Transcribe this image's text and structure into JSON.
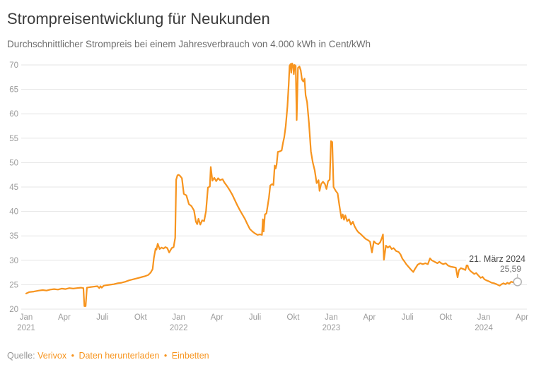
{
  "header": {
    "title": "Strompreisentwicklung für Neukunden",
    "subtitle": "Durchschnittlicher Strompreis bei einem Jahresverbrauch von 4.000 kWh in Cent/kWh"
  },
  "chart_data": {
    "type": "line",
    "title": "Strompreisentwicklung für Neukunden",
    "subtitle": "Durchschnittlicher Strompreis bei einem Jahresverbrauch von 4.000 kWh in Cent/kWh",
    "ylabel": "Cent/kWh",
    "xlabel": "",
    "ylim": [
      20,
      70
    ],
    "grid": true,
    "legend": "none",
    "x_unit": "months since Jan 2021 (0 = Jan 2021, 39 = Apr 2024)",
    "y_ticks": [
      20,
      25,
      30,
      35,
      40,
      45,
      50,
      55,
      60,
      65,
      70
    ],
    "x_ticks": [
      {
        "label": "Jan",
        "year": "2021",
        "month": 0
      },
      {
        "label": "Apr",
        "month": 3
      },
      {
        "label": "Juli",
        "month": 6
      },
      {
        "label": "Okt",
        "month": 9
      },
      {
        "label": "Jan",
        "year": "2022",
        "month": 12
      },
      {
        "label": "Apr",
        "month": 15
      },
      {
        "label": "Juli",
        "month": 18
      },
      {
        "label": "Okt",
        "month": 21
      },
      {
        "label": "Jan",
        "year": "2023",
        "month": 24
      },
      {
        "label": "Apr",
        "month": 27
      },
      {
        "label": "Juli",
        "month": 30
      },
      {
        "label": "Okt",
        "month": 33
      },
      {
        "label": "Jan",
        "year": "2024",
        "month": 36
      },
      {
        "label": "Apr",
        "month": 39
      }
    ],
    "series": [
      {
        "name": "Durchschnittlicher Strompreis",
        "color": "#f7941e",
        "points": [
          [
            0,
            23.2
          ],
          [
            0.25,
            23.5
          ],
          [
            0.6,
            23.6
          ],
          [
            1,
            23.8
          ],
          [
            1.3,
            23.9
          ],
          [
            1.6,
            23.8
          ],
          [
            1.9,
            24
          ],
          [
            2.2,
            24.1
          ],
          [
            2.5,
            24
          ],
          [
            2.8,
            24.2
          ],
          [
            3.1,
            24.1
          ],
          [
            3.4,
            24.3
          ],
          [
            3.7,
            24.2
          ],
          [
            4,
            24.3
          ],
          [
            4.3,
            24.4
          ],
          [
            4.5,
            24.3
          ],
          [
            4.58,
            20.6
          ],
          [
            4.68,
            20.6
          ],
          [
            4.78,
            24.4
          ],
          [
            5,
            24.5
          ],
          [
            5.3,
            24.6
          ],
          [
            5.6,
            24.7
          ],
          [
            5.75,
            24.3
          ],
          [
            5.85,
            24.7
          ],
          [
            5.95,
            24.4
          ],
          [
            6.1,
            24.8
          ],
          [
            6.3,
            24.9
          ],
          [
            6.6,
            25
          ],
          [
            6.9,
            25.1
          ],
          [
            7.2,
            25.3
          ],
          [
            7.5,
            25.4
          ],
          [
            7.8,
            25.6
          ],
          [
            8.1,
            25.9
          ],
          [
            8.4,
            26.1
          ],
          [
            8.7,
            26.3
          ],
          [
            9,
            26.5
          ],
          [
            9.3,
            26.7
          ],
          [
            9.6,
            27
          ],
          [
            9.8,
            27.5
          ],
          [
            9.95,
            28.2
          ],
          [
            10.05,
            30.5
          ],
          [
            10.18,
            32.4
          ],
          [
            10.25,
            32.2
          ],
          [
            10.35,
            33.4
          ],
          [
            10.5,
            32.3
          ],
          [
            10.65,
            32.6
          ],
          [
            10.8,
            32.4
          ],
          [
            10.95,
            32.7
          ],
          [
            11.1,
            32.5
          ],
          [
            11.25,
            31.6
          ],
          [
            11.45,
            32.5
          ],
          [
            11.6,
            32.7
          ],
          [
            11.72,
            34.6
          ],
          [
            11.8,
            46.5
          ],
          [
            11.9,
            47.4
          ],
          [
            12,
            47.5
          ],
          [
            12.1,
            47.3
          ],
          [
            12.25,
            46.8
          ],
          [
            12.4,
            43.6
          ],
          [
            12.6,
            43.3
          ],
          [
            12.8,
            41.5
          ],
          [
            13,
            41.1
          ],
          [
            13.2,
            40.2
          ],
          [
            13.35,
            37.9
          ],
          [
            13.45,
            37.4
          ],
          [
            13.55,
            38.5
          ],
          [
            13.7,
            37.3
          ],
          [
            13.85,
            38.2
          ],
          [
            14,
            38
          ],
          [
            14.15,
            40.1
          ],
          [
            14.3,
            44.9
          ],
          [
            14.45,
            45.1
          ],
          [
            14.52,
            49.1
          ],
          [
            14.65,
            46.3
          ],
          [
            14.8,
            46.9
          ],
          [
            14.95,
            46.2
          ],
          [
            15.1,
            46.8
          ],
          [
            15.25,
            46.4
          ],
          [
            15.45,
            46.6
          ],
          [
            15.6,
            45.9
          ],
          [
            15.8,
            45.2
          ],
          [
            16,
            44.4
          ],
          [
            16.2,
            43.5
          ],
          [
            16.4,
            42.4
          ],
          [
            16.6,
            41.3
          ],
          [
            16.8,
            40.3
          ],
          [
            17,
            39.4
          ],
          [
            17.2,
            38.5
          ],
          [
            17.4,
            37.4
          ],
          [
            17.6,
            36.4
          ],
          [
            17.8,
            35.9
          ],
          [
            18,
            35.5
          ],
          [
            18.2,
            35.2
          ],
          [
            18.4,
            35.3
          ],
          [
            18.55,
            35.2
          ],
          [
            18.62,
            38.4
          ],
          [
            18.68,
            35.9
          ],
          [
            18.78,
            39.4
          ],
          [
            18.9,
            39.6
          ],
          [
            19,
            41.2
          ],
          [
            19.1,
            42.9
          ],
          [
            19.2,
            45.3
          ],
          [
            19.35,
            45.6
          ],
          [
            19.45,
            45.4
          ],
          [
            19.55,
            49.4
          ],
          [
            19.63,
            48.8
          ],
          [
            19.7,
            49.6
          ],
          [
            19.8,
            52.2
          ],
          [
            19.95,
            52.3
          ],
          [
            20.1,
            52.5
          ],
          [
            20.2,
            54
          ],
          [
            20.3,
            55.2
          ],
          [
            20.42,
            57.5
          ],
          [
            20.55,
            61.5
          ],
          [
            20.65,
            66
          ],
          [
            20.72,
            69.8
          ],
          [
            20.8,
            70.2
          ],
          [
            20.85,
            68.4
          ],
          [
            20.92,
            70.3
          ],
          [
            21,
            69.9
          ],
          [
            21.05,
            68.1
          ],
          [
            21.12,
            70
          ],
          [
            21.2,
            69.8
          ],
          [
            21.28,
            58.7
          ],
          [
            21.38,
            69.4
          ],
          [
            21.5,
            69.7
          ],
          [
            21.6,
            68.9
          ],
          [
            21.7,
            67
          ],
          [
            21.8,
            66.6
          ],
          [
            21.9,
            67.2
          ],
          [
            21.98,
            63.8
          ],
          [
            22.1,
            62.4
          ],
          [
            22.25,
            58
          ],
          [
            22.4,
            52.3
          ],
          [
            22.55,
            50
          ],
          [
            22.7,
            48.4
          ],
          [
            22.85,
            45.8
          ],
          [
            23,
            46.4
          ],
          [
            23.08,
            44.2
          ],
          [
            23.2,
            45.6
          ],
          [
            23.35,
            46.1
          ],
          [
            23.5,
            45.6
          ],
          [
            23.62,
            44.6
          ],
          [
            23.75,
            46.2
          ],
          [
            23.88,
            46.5
          ],
          [
            23.98,
            54.4
          ],
          [
            24.08,
            54.2
          ],
          [
            24.18,
            45
          ],
          [
            24.35,
            44.2
          ],
          [
            24.5,
            43.7
          ],
          [
            24.65,
            41
          ],
          [
            24.8,
            38.6
          ],
          [
            24.9,
            39.4
          ],
          [
            25,
            38.3
          ],
          [
            25.1,
            39.2
          ],
          [
            25.25,
            38
          ],
          [
            25.4,
            38.4
          ],
          [
            25.55,
            37.3
          ],
          [
            25.7,
            37.9
          ],
          [
            25.85,
            36.9
          ],
          [
            26,
            36.2
          ],
          [
            26.15,
            35.7
          ],
          [
            26.3,
            35.4
          ],
          [
            26.5,
            34.9
          ],
          [
            26.7,
            34.4
          ],
          [
            26.9,
            34.1
          ],
          [
            27.05,
            33.8
          ],
          [
            27.2,
            31.6
          ],
          [
            27.35,
            33.9
          ],
          [
            27.5,
            33.5
          ],
          [
            27.7,
            33.3
          ],
          [
            27.85,
            33.7
          ],
          [
            28,
            34.7
          ],
          [
            28.07,
            35.3
          ],
          [
            28.14,
            30.1
          ],
          [
            28.3,
            33
          ],
          [
            28.45,
            32.6
          ],
          [
            28.6,
            32.9
          ],
          [
            28.75,
            32.3
          ],
          [
            28.9,
            32.5
          ],
          [
            29.1,
            31.9
          ],
          [
            29.3,
            31.7
          ],
          [
            29.45,
            31.2
          ],
          [
            29.6,
            30.3
          ],
          [
            29.75,
            29.8
          ],
          [
            29.9,
            29.2
          ],
          [
            30.1,
            28.6
          ],
          [
            30.3,
            28
          ],
          [
            30.45,
            27.6
          ],
          [
            30.6,
            28.3
          ],
          [
            30.8,
            29.1
          ],
          [
            31,
            29.4
          ],
          [
            31.2,
            29.2
          ],
          [
            31.4,
            29.4
          ],
          [
            31.6,
            29.2
          ],
          [
            31.77,
            30.4
          ],
          [
            31.9,
            30
          ],
          [
            32.05,
            29.8
          ],
          [
            32.2,
            29.6
          ],
          [
            32.35,
            29.4
          ],
          [
            32.5,
            29.7
          ],
          [
            32.65,
            29.4
          ],
          [
            32.8,
            29.2
          ],
          [
            33,
            29.4
          ],
          [
            33.2,
            28.9
          ],
          [
            33.4,
            28.7
          ],
          [
            33.6,
            28.6
          ],
          [
            33.8,
            28.5
          ],
          [
            33.94,
            26.5
          ],
          [
            34.05,
            28
          ],
          [
            34.2,
            28.4
          ],
          [
            34.4,
            28.2
          ],
          [
            34.55,
            28
          ],
          [
            34.68,
            29.3
          ],
          [
            34.8,
            28.3
          ],
          [
            34.95,
            27.8
          ],
          [
            35.1,
            27.5
          ],
          [
            35.25,
            27.2
          ],
          [
            35.4,
            27.4
          ],
          [
            35.6,
            26.8
          ],
          [
            35.75,
            26.4
          ],
          [
            35.9,
            26.6
          ],
          [
            36.05,
            26.1
          ],
          [
            36.2,
            25.9
          ],
          [
            36.4,
            25.7
          ],
          [
            36.6,
            25.4
          ],
          [
            36.8,
            25.3
          ],
          [
            37,
            25.1
          ],
          [
            37.25,
            24.8
          ],
          [
            37.4,
            25.1
          ],
          [
            37.55,
            25.3
          ],
          [
            37.7,
            25.1
          ],
          [
            37.85,
            25.4
          ],
          [
            38,
            25.2
          ],
          [
            38.15,
            25.6
          ],
          [
            38.3,
            25.5
          ],
          [
            38.45,
            25.4
          ],
          [
            38.65,
            25.59
          ]
        ]
      }
    ],
    "annotation": {
      "date_label": "21. März 2024",
      "value_label": "25,59",
      "month": 38.65,
      "value": 25.59
    }
  },
  "footer": {
    "source_label": "Quelle:",
    "separator": "•",
    "links": [
      "Verivox",
      "Daten herunterladen",
      "Einbetten"
    ]
  },
  "colors": {
    "accent": "#f7941e",
    "grid": "#e6e6e6",
    "axis_text": "#9b9b9b",
    "title_text": "#3b3b3b",
    "subtitle_text": "#6e6e6e",
    "annotation_text": "#4a4a4a",
    "marker_stroke": "#b3b3b3"
  }
}
